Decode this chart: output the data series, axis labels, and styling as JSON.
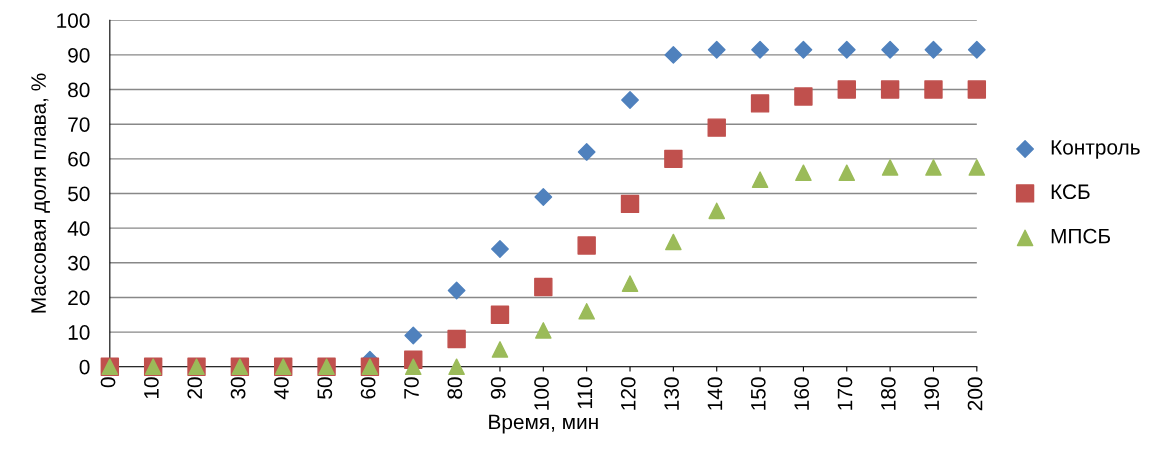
{
  "chart_data": {
    "type": "scatter",
    "xlabel": "Время, мин",
    "ylabel": "Массовая доля плава, %",
    "x": [
      0,
      10,
      20,
      30,
      40,
      50,
      60,
      70,
      80,
      90,
      100,
      110,
      120,
      130,
      140,
      150,
      160,
      170,
      180,
      190,
      200
    ],
    "xlim": [
      0,
      200
    ],
    "xticks": [
      0,
      10,
      20,
      30,
      40,
      50,
      60,
      70,
      80,
      90,
      100,
      110,
      120,
      130,
      140,
      150,
      160,
      170,
      180,
      190,
      200
    ],
    "ylim": [
      0,
      100
    ],
    "yticks": [
      0,
      10,
      20,
      30,
      40,
      50,
      60,
      70,
      80,
      90,
      100
    ],
    "grid": "y",
    "legend": "right",
    "series": [
      {
        "name": "Контроль",
        "color": "#4f81bd",
        "marker": "diamond",
        "values": [
          null,
          null,
          null,
          null,
          null,
          null,
          2,
          9,
          22,
          34,
          49,
          62,
          77,
          90,
          91.5,
          91.5,
          91.5,
          91.5,
          91.5,
          91.5,
          91.5
        ]
      },
      {
        "name": "КСБ",
        "color": "#c0504d",
        "marker": "square",
        "values": [
          0,
          0,
          0,
          0,
          0,
          0,
          0,
          2,
          8,
          15,
          23,
          35,
          47,
          60,
          69,
          76,
          78,
          80,
          80,
          80,
          80
        ]
      },
      {
        "name": "МПСБ",
        "color": "#9bbb59",
        "marker": "triangle",
        "values": [
          0,
          0,
          0,
          0,
          0,
          0,
          0,
          0,
          0,
          5,
          10.5,
          16,
          24,
          36,
          45,
          54,
          56,
          56,
          57.5,
          57.5,
          57.5
        ]
      }
    ]
  }
}
